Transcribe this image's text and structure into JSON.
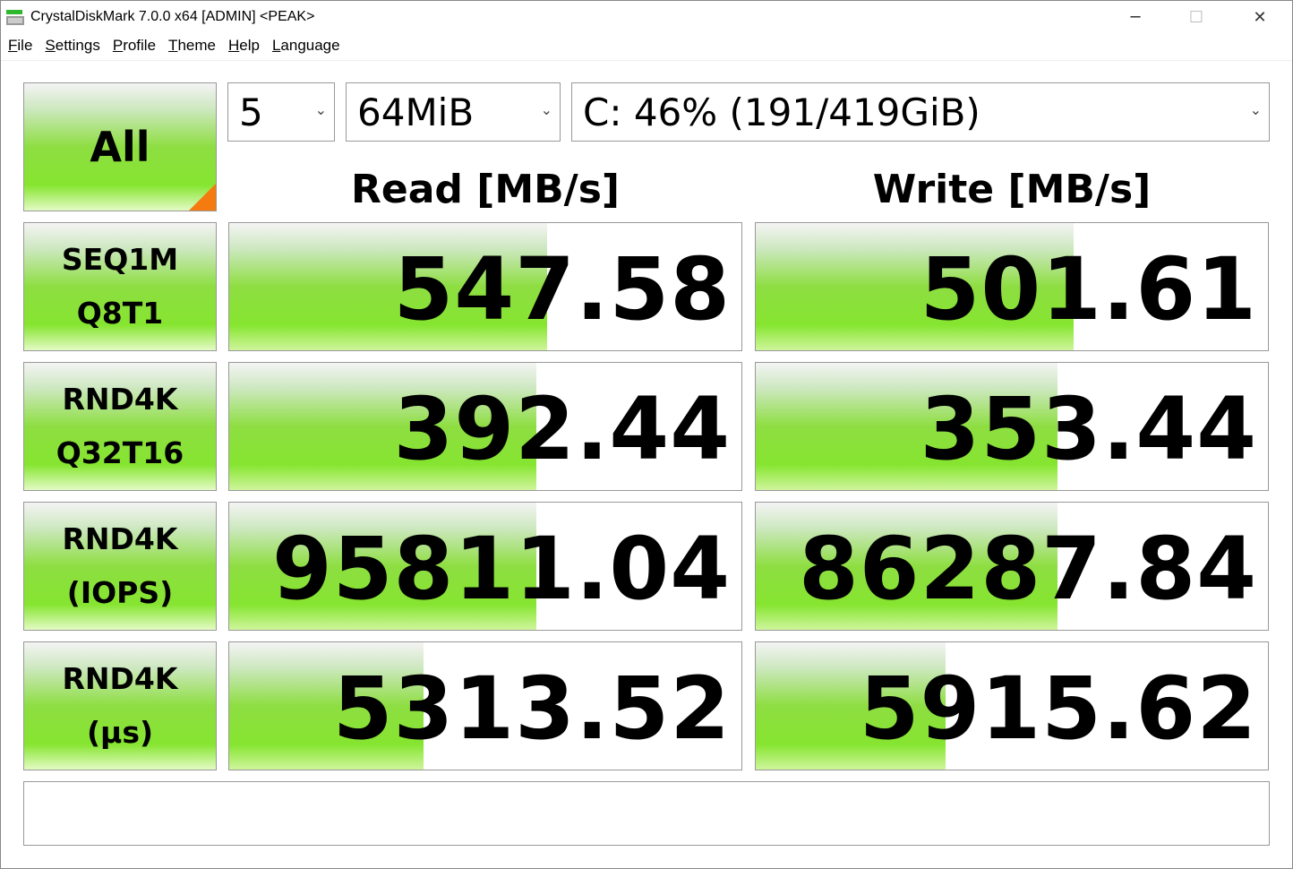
{
  "window": {
    "title": "CrystalDiskMark 7.0.0 x64 [ADMIN] <PEAK>",
    "icon": "crystaldiskmark-icon"
  },
  "menu": [
    "File",
    "Settings",
    "Profile",
    "Theme",
    "Help",
    "Language"
  ],
  "controls": {
    "all_label": "All",
    "count": "5",
    "size": "64MiB",
    "drive": "C: 46% (191/419GiB)"
  },
  "headers": {
    "read": "Read [MB/s]",
    "write": "Write [MB/s]"
  },
  "colors": {
    "bar": "#86e530",
    "corner": "#f57a10"
  },
  "rows": [
    {
      "line1": "SEQ1M",
      "line2": "Q8T1",
      "read": "547.58",
      "write": "501.61",
      "read_fill": 0.62,
      "write_fill": 0.62
    },
    {
      "line1": "RND4K",
      "line2": "Q32T16",
      "read": "392.44",
      "write": "353.44",
      "read_fill": 0.6,
      "write_fill": 0.59
    },
    {
      "line1": "RND4K",
      "line2": "(IOPS)",
      "read": "95811.04",
      "write": "86287.84",
      "read_fill": 0.6,
      "write_fill": 0.59
    },
    {
      "line1": "RND4K",
      "line2": "(µs)",
      "read": "5313.52",
      "write": "5915.62",
      "read_fill": 0.38,
      "write_fill": 0.37
    }
  ],
  "comment": ""
}
